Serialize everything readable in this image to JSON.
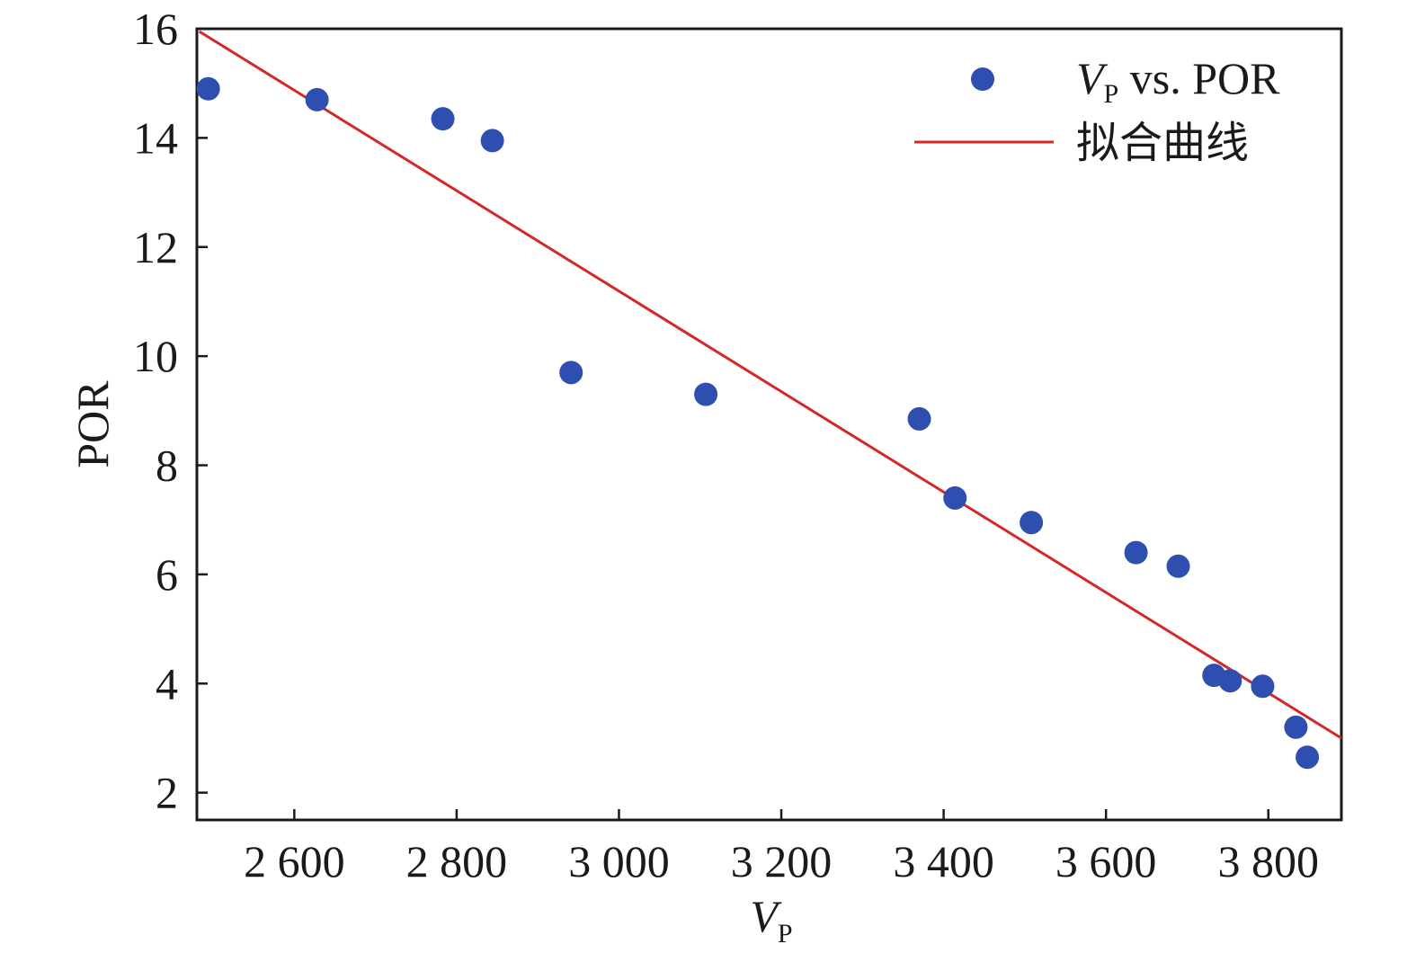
{
  "chart_data": {
    "type": "scatter",
    "xlabel": {
      "main": "V",
      "sub": "P"
    },
    "ylabel": "POR",
    "xlim": [
      2480,
      3890
    ],
    "ylim": [
      1.5,
      16
    ],
    "x_ticks": [
      2600,
      2800,
      3000,
      3200,
      3400,
      3600,
      3800
    ],
    "x_tick_labels": [
      "2 600",
      "2 800",
      "3 000",
      "3 200",
      "3 400",
      "3 600",
      "3 800"
    ],
    "y_ticks": [
      2,
      4,
      6,
      8,
      10,
      12,
      14,
      16
    ],
    "y_tick_labels": [
      "2",
      "4",
      "6",
      "8",
      "10",
      "12",
      "14",
      "16"
    ],
    "legend_position": "top-right",
    "series": [
      {
        "type": "scatter",
        "legend": {
          "main": "V",
          "sub": "P",
          "rest": " vs. POR"
        },
        "color": "#2e4fb0",
        "x": [
          2494,
          2628,
          2783,
          2844,
          2941,
          3107,
          3370,
          3414,
          3508,
          3637,
          3689,
          3733,
          3753,
          3793,
          3834,
          3848
        ],
        "y": [
          14.9,
          14.7,
          14.35,
          13.95,
          9.7,
          9.3,
          8.85,
          7.4,
          6.95,
          6.4,
          6.15,
          4.15,
          4.05,
          3.95,
          3.2,
          2.65
        ]
      },
      {
        "type": "line",
        "legend": "拟合曲线",
        "color": "#d62728",
        "x": [
          2483,
          3890
        ],
        "y": [
          15.95,
          3.0
        ]
      }
    ]
  }
}
